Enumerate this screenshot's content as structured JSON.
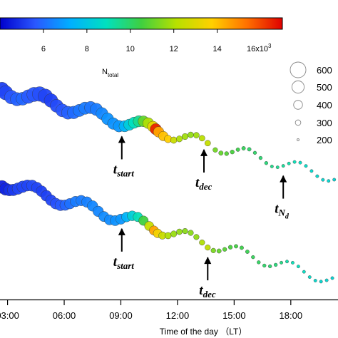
{
  "chart_data": {
    "type": "scatter",
    "xlabel": "Time of the day （LT）",
    "x_ticks": [
      "03:00",
      "06:00",
      "09:00",
      "12:00",
      "15:00",
      "18:00"
    ],
    "x_tick_hours": [
      3,
      6,
      9,
      12,
      15,
      18
    ],
    "xlim_hours": [
      2.6,
      20.5
    ],
    "colorbar": {
      "ticks": [
        "6",
        "8",
        "10",
        "12",
        "14"
      ],
      "tick_values": [
        6000,
        8000,
        10000,
        12000,
        14000
      ],
      "range": [
        4000,
        17000
      ],
      "multiplier_label": "16x10",
      "multiplier_exp": "3",
      "colors": [
        "#0000cc",
        "#2a57ff",
        "#00b0ff",
        "#00e0c0",
        "#3fd040",
        "#b8e000",
        "#ffd000",
        "#ff7000",
        "#e00000"
      ]
    },
    "size_legend": {
      "title": "N",
      "title_sub": "total",
      "labels": [
        "600",
        "500",
        "400",
        "300",
        "200"
      ],
      "values": [
        600,
        500,
        400,
        300,
        200
      ]
    },
    "annotations": [
      {
        "main": "t",
        "sub": "start",
        "series": "upper",
        "hour": 9.05
      },
      {
        "main": "t",
        "sub": "dec",
        "series": "upper",
        "hour": 13.4
      },
      {
        "main": "t",
        "sub": "N",
        "subsub": "d",
        "series": "upper",
        "hour": 17.6
      },
      {
        "main": "t",
        "sub": "start",
        "series": "lower",
        "hour": 9.05
      },
      {
        "main": "t",
        "sub": "dec",
        "series": "lower",
        "hour": 13.6
      }
    ],
    "series": [
      {
        "points": [
          {
            "x": 2.7,
            "n": 5200,
            "s": 550
          },
          {
            "x": 2.9,
            "n": 5300,
            "s": 560
          },
          {
            "x": 3.2,
            "n": 5600,
            "s": 540
          },
          {
            "x": 3.5,
            "n": 5800,
            "s": 530
          },
          {
            "x": 3.8,
            "n": 5900,
            "s": 520
          },
          {
            "x": 4.1,
            "n": 5700,
            "s": 540
          },
          {
            "x": 4.4,
            "n": 5600,
            "s": 560
          },
          {
            "x": 4.7,
            "n": 5500,
            "s": 570
          },
          {
            "x": 5.0,
            "n": 5300,
            "s": 560
          },
          {
            "x": 5.3,
            "n": 5200,
            "s": 540
          },
          {
            "x": 5.6,
            "n": 5400,
            "s": 520
          },
          {
            "x": 5.9,
            "n": 5600,
            "s": 520
          },
          {
            "x": 6.2,
            "n": 5800,
            "s": 520
          },
          {
            "x": 6.5,
            "n": 6000,
            "s": 510
          },
          {
            "x": 6.8,
            "n": 6200,
            "s": 500
          },
          {
            "x": 7.1,
            "n": 6300,
            "s": 500
          },
          {
            "x": 7.4,
            "n": 6200,
            "s": 500
          },
          {
            "x": 7.7,
            "n": 6300,
            "s": 500
          },
          {
            "x": 8.0,
            "n": 6500,
            "s": 490
          },
          {
            "x": 8.3,
            "n": 6700,
            "s": 490
          },
          {
            "x": 8.6,
            "n": 6700,
            "s": 480
          },
          {
            "x": 8.9,
            "n": 6800,
            "s": 480
          },
          {
            "x": 9.2,
            "n": 7400,
            "s": 470
          },
          {
            "x": 9.45,
            "n": 8200,
            "s": 470
          },
          {
            "x": 9.7,
            "n": 8900,
            "s": 470
          },
          {
            "x": 9.95,
            "n": 9500,
            "s": 470
          },
          {
            "x": 10.2,
            "n": 11000,
            "s": 460
          },
          {
            "x": 10.45,
            "n": 12000,
            "s": 460
          },
          {
            "x": 10.7,
            "n": 13200,
            "s": 460
          },
          {
            "x": 10.85,
            "n": 16500,
            "s": 470
          },
          {
            "x": 11.0,
            "n": 14500,
            "s": 450
          },
          {
            "x": 11.25,
            "n": 14000,
            "s": 420
          },
          {
            "x": 11.5,
            "n": 13800,
            "s": 360
          },
          {
            "x": 11.8,
            "n": 12500,
            "s": 330
          },
          {
            "x": 12.1,
            "n": 12000,
            "s": 320
          },
          {
            "x": 12.4,
            "n": 11800,
            "s": 320
          },
          {
            "x": 12.7,
            "n": 11600,
            "s": 310
          },
          {
            "x": 13.0,
            "n": 11800,
            "s": 310
          },
          {
            "x": 13.3,
            "n": 12200,
            "s": 310
          },
          {
            "x": 13.6,
            "n": 12400,
            "s": 310
          },
          {
            "x": 14.0,
            "n": 11200,
            "s": 280
          },
          {
            "x": 14.3,
            "n": 11000,
            "s": 270
          },
          {
            "x": 14.6,
            "n": 10800,
            "s": 260
          },
          {
            "x": 14.9,
            "n": 10600,
            "s": 260
          },
          {
            "x": 15.2,
            "n": 10400,
            "s": 250
          },
          {
            "x": 15.5,
            "n": 10200,
            "s": 250
          },
          {
            "x": 15.8,
            "n": 10000,
            "s": 250
          },
          {
            "x": 16.1,
            "n": 10000,
            "s": 240
          },
          {
            "x": 16.4,
            "n": 9900,
            "s": 240
          },
          {
            "x": 16.7,
            "n": 9800,
            "s": 240
          },
          {
            "x": 17.0,
            "n": 9600,
            "s": 230
          },
          {
            "x": 17.3,
            "n": 9500,
            "s": 230
          },
          {
            "x": 17.6,
            "n": 9400,
            "s": 230
          },
          {
            "x": 17.9,
            "n": 9200,
            "s": 230
          },
          {
            "x": 18.2,
            "n": 9000,
            "s": 230
          },
          {
            "x": 18.5,
            "n": 8800,
            "s": 230
          },
          {
            "x": 18.8,
            "n": 8700,
            "s": 230
          },
          {
            "x": 19.1,
            "n": 8600,
            "s": 230
          },
          {
            "x": 19.4,
            "n": 8600,
            "s": 230
          },
          {
            "x": 19.7,
            "n": 8500,
            "s": 230
          },
          {
            "x": 20.0,
            "n": 8500,
            "s": 230
          },
          {
            "x": 20.3,
            "n": 8400,
            "s": 230
          }
        ]
      },
      {
        "points": [
          {
            "x": 2.7,
            "n": 4600,
            "s": 520
          },
          {
            "x": 2.9,
            "n": 4700,
            "s": 500
          },
          {
            "x": 3.1,
            "n": 4900,
            "s": 480
          },
          {
            "x": 3.3,
            "n": 5100,
            "s": 480
          },
          {
            "x": 3.55,
            "n": 5300,
            "s": 480
          },
          {
            "x": 3.8,
            "n": 5300,
            "s": 480
          },
          {
            "x": 4.05,
            "n": 5300,
            "s": 470
          },
          {
            "x": 4.3,
            "n": 5400,
            "s": 470
          },
          {
            "x": 4.55,
            "n": 5300,
            "s": 460
          },
          {
            "x": 4.8,
            "n": 5200,
            "s": 460
          },
          {
            "x": 5.05,
            "n": 5200,
            "s": 460
          },
          {
            "x": 5.3,
            "n": 5300,
            "s": 460
          },
          {
            "x": 5.55,
            "n": 5500,
            "s": 460
          },
          {
            "x": 5.8,
            "n": 5700,
            "s": 460
          },
          {
            "x": 6.05,
            "n": 5900,
            "s": 450
          },
          {
            "x": 6.3,
            "n": 6100,
            "s": 450
          },
          {
            "x": 6.6,
            "n": 6300,
            "s": 450
          },
          {
            "x": 6.9,
            "n": 6300,
            "s": 450
          },
          {
            "x": 7.2,
            "n": 6400,
            "s": 450
          },
          {
            "x": 7.5,
            "n": 6500,
            "s": 450
          },
          {
            "x": 7.8,
            "n": 6500,
            "s": 450
          },
          {
            "x": 8.1,
            "n": 6600,
            "s": 440
          },
          {
            "x": 8.4,
            "n": 6600,
            "s": 440
          },
          {
            "x": 8.7,
            "n": 6700,
            "s": 440
          },
          {
            "x": 9.0,
            "n": 6800,
            "s": 440
          },
          {
            "x": 9.3,
            "n": 7400,
            "s": 430
          },
          {
            "x": 9.6,
            "n": 8300,
            "s": 430
          },
          {
            "x": 9.9,
            "n": 9000,
            "s": 420
          },
          {
            "x": 10.2,
            "n": 10500,
            "s": 420
          },
          {
            "x": 10.5,
            "n": 12500,
            "s": 410
          },
          {
            "x": 10.75,
            "n": 14500,
            "s": 410
          },
          {
            "x": 10.95,
            "n": 13500,
            "s": 400
          },
          {
            "x": 11.2,
            "n": 12500,
            "s": 360
          },
          {
            "x": 11.5,
            "n": 12000,
            "s": 330
          },
          {
            "x": 11.8,
            "n": 11700,
            "s": 320
          },
          {
            "x": 12.1,
            "n": 11600,
            "s": 310
          },
          {
            "x": 12.4,
            "n": 11500,
            "s": 300
          },
          {
            "x": 12.7,
            "n": 11500,
            "s": 300
          },
          {
            "x": 13.0,
            "n": 11600,
            "s": 300
          },
          {
            "x": 13.3,
            "n": 12000,
            "s": 300
          },
          {
            "x": 13.6,
            "n": 12300,
            "s": 300
          },
          {
            "x": 13.9,
            "n": 11300,
            "s": 280
          },
          {
            "x": 14.2,
            "n": 11000,
            "s": 270
          },
          {
            "x": 14.5,
            "n": 10800,
            "s": 260
          },
          {
            "x": 14.8,
            "n": 10600,
            "s": 260
          },
          {
            "x": 15.1,
            "n": 10500,
            "s": 250
          },
          {
            "x": 15.4,
            "n": 10400,
            "s": 250
          },
          {
            "x": 15.7,
            "n": 10300,
            "s": 250
          },
          {
            "x": 16.0,
            "n": 10200,
            "s": 240
          },
          {
            "x": 16.3,
            "n": 10100,
            "s": 240
          },
          {
            "x": 16.6,
            "n": 10000,
            "s": 240
          },
          {
            "x": 16.9,
            "n": 9900,
            "s": 240
          },
          {
            "x": 17.2,
            "n": 9800,
            "s": 240
          },
          {
            "x": 17.5,
            "n": 9700,
            "s": 230
          },
          {
            "x": 17.8,
            "n": 9200,
            "s": 230
          },
          {
            "x": 18.1,
            "n": 9000,
            "s": 230
          },
          {
            "x": 18.4,
            "n": 8900,
            "s": 230
          },
          {
            "x": 18.7,
            "n": 8800,
            "s": 230
          },
          {
            "x": 19.0,
            "n": 8700,
            "s": 230
          },
          {
            "x": 19.3,
            "n": 8600,
            "s": 230
          },
          {
            "x": 19.6,
            "n": 8500,
            "s": 230
          },
          {
            "x": 19.9,
            "n": 8500,
            "s": 230
          },
          {
            "x": 20.2,
            "n": 8400,
            "s": 230
          }
        ]
      }
    ]
  }
}
